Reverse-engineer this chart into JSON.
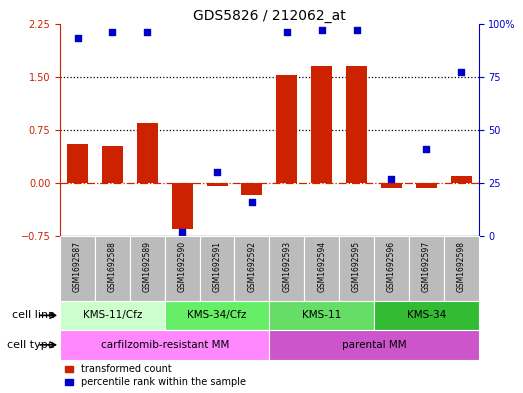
{
  "title": "GDS5826 / 212062_at",
  "samples": [
    "GSM1692587",
    "GSM1692588",
    "GSM1692589",
    "GSM1692590",
    "GSM1692591",
    "GSM1692592",
    "GSM1692593",
    "GSM1692594",
    "GSM1692595",
    "GSM1692596",
    "GSM1692597",
    "GSM1692598"
  ],
  "transformed_count": [
    0.55,
    0.52,
    0.85,
    -0.65,
    -0.05,
    -0.18,
    1.52,
    1.65,
    1.65,
    -0.08,
    -0.07,
    0.1
  ],
  "percentile_rank": [
    93,
    96,
    96,
    2,
    30,
    16,
    96,
    97,
    97,
    27,
    41,
    77
  ],
  "bar_color": "#cc2200",
  "dot_color": "#0000cc",
  "ylim_left": [
    -0.75,
    2.25
  ],
  "ylim_right": [
    0,
    100
  ],
  "yticks_left": [
    -0.75,
    0,
    0.75,
    1.5,
    2.25
  ],
  "yticks_right": [
    0,
    25,
    50,
    75,
    100
  ],
  "hlines": [
    0.75,
    1.5
  ],
  "zero_line_color": "#cc2200",
  "hline_color": "black",
  "cell_line_groups": [
    {
      "label": "KMS-11/Cfz",
      "start": 0,
      "end": 3,
      "color": "#ccffcc"
    },
    {
      "label": "KMS-34/Cfz",
      "start": 3,
      "end": 6,
      "color": "#66ee66"
    },
    {
      "label": "KMS-11",
      "start": 6,
      "end": 9,
      "color": "#66dd66"
    },
    {
      "label": "KMS-34",
      "start": 9,
      "end": 12,
      "color": "#33bb33"
    }
  ],
  "cell_type_groups": [
    {
      "label": "carfilzomib-resistant MM",
      "start": 0,
      "end": 6,
      "color": "#ff88ff"
    },
    {
      "label": "parental MM",
      "start": 6,
      "end": 12,
      "color": "#cc55cc"
    }
  ],
  "legend_bar_label": "transformed count",
  "legend_dot_label": "percentile rank within the sample",
  "background_color": "#ffffff",
  "sample_bg_color": "#bbbbbb",
  "title_fontsize": 10,
  "tick_fontsize": 7,
  "label_fontsize": 8,
  "group_fontsize": 7.5
}
